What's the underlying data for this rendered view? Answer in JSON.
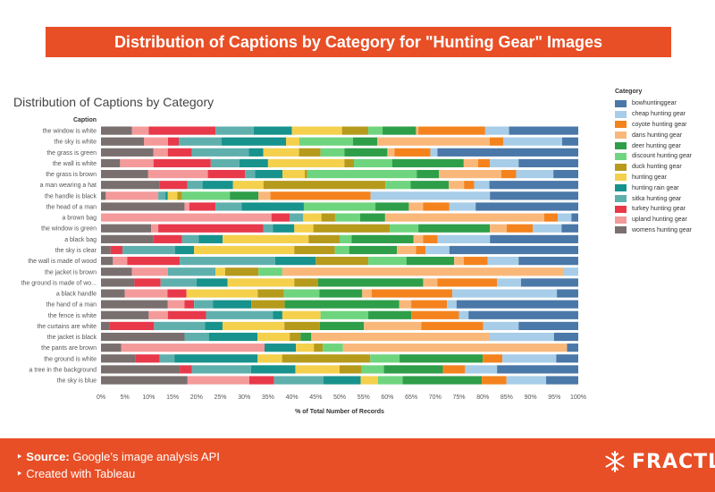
{
  "banner_title": "Distribution of Captions by Category for \"Hunting Gear\" Images",
  "chart_data": {
    "type": "bar",
    "orientation": "horizontal-stacked-100",
    "title": "Distribution of Captions by Category",
    "ylabel": "Caption",
    "xlabel": "% of Total Number of Records",
    "xlim": [
      0,
      100
    ],
    "xticks": [
      "0%",
      "5%",
      "10%",
      "15%",
      "20%",
      "25%",
      "30%",
      "35%",
      "40%",
      "45%",
      "50%",
      "55%",
      "60%",
      "65%",
      "70%",
      "75%",
      "80%",
      "85%",
      "90%",
      "95%",
      "100%"
    ],
    "legend_title": "Category",
    "legend_position": "right",
    "series": [
      {
        "name": "womens hunting gear",
        "color": "#7a6f6f"
      },
      {
        "name": "upland hunting gear",
        "color": "#f49a9a"
      },
      {
        "name": "turkey hunting gear",
        "color": "#e8394a"
      },
      {
        "name": "sitka hunting gear",
        "color": "#5fb0ad"
      },
      {
        "name": "hunting rain gear",
        "color": "#17928d"
      },
      {
        "name": "hunting gear",
        "color": "#f4d04c"
      },
      {
        "name": "duck hunting gear",
        "color": "#b69a1c"
      },
      {
        "name": "discount hunting gear",
        "color": "#6ed57e"
      },
      {
        "name": "deer hunting gear",
        "color": "#2e9e49"
      },
      {
        "name": "dans hunting gear",
        "color": "#f9b87a"
      },
      {
        "name": "coyote hunting gear",
        "color": "#f4831e"
      },
      {
        "name": "cheap hunting gear",
        "color": "#a7cde8"
      },
      {
        "name": "bowhuntinggear",
        "color": "#4a78a8"
      }
    ],
    "categories": [
      "the window is white",
      "the sky is white",
      "the grass is green",
      "the wall is white",
      "the grass is brown",
      "a man wearing a hat",
      "the handle is black",
      "the head of a man",
      "a brown bag",
      "the window is green",
      "a black bag",
      "the sky is clear",
      "the wall is made of wood",
      "the jacket is brown",
      "the ground is made of wo...",
      "a black handle",
      "the hand of a man",
      "the fence is white",
      "the curtains are white",
      "the jacket is black",
      "the pants are brown",
      "the ground is white",
      "a tree in the background",
      "the sky is blue"
    ],
    "values": [
      [
        6.5,
        3.5,
        14,
        8,
        8,
        10.5,
        5.5,
        3,
        7,
        0.5,
        14,
        5,
        14.5
      ],
      [
        8,
        4.5,
        2,
        8,
        12,
        2.5,
        0,
        10,
        4.5,
        21,
        2.5,
        11,
        3
      ],
      [
        11,
        3,
        5,
        12,
        3,
        7.5,
        4.5,
        5,
        9,
        1.5,
        7.5,
        1.5,
        29.5
      ],
      [
        4,
        7,
        12,
        6,
        6,
        16,
        2,
        8,
        15,
        3,
        2.5,
        6,
        12.5
      ],
      [
        9.5,
        12,
        7.5,
        2,
        5.5,
        4.5,
        0.5,
        22,
        4.5,
        12.5,
        3,
        7.5,
        5
      ],
      [
        11.5,
        0,
        5.5,
        3,
        6,
        6,
        24,
        5,
        7.5,
        3,
        2,
        3,
        17.5
      ],
      [
        1,
        11,
        0,
        1.5,
        0.5,
        2,
        1,
        10,
        6,
        2.5,
        21,
        25,
        18.5
      ],
      [
        17.5,
        1,
        5.5,
        5.5,
        13,
        0,
        0,
        15,
        7,
        3,
        5.5,
        5.5,
        21.5
      ],
      [
        0,
        37.5,
        4,
        3,
        0,
        4,
        3,
        5.5,
        5.5,
        35,
        3,
        3,
        1.5
      ],
      [
        10.5,
        1.5,
        22,
        2,
        4.5,
        4,
        16,
        6,
        15,
        3.5,
        5.5,
        6,
        3.5
      ],
      [
        11,
        0,
        6,
        3.5,
        5,
        18,
        6.5,
        2.5,
        13,
        2,
        3,
        11,
        18.5
      ],
      [
        2,
        0,
        2.5,
        11,
        4,
        21,
        8.5,
        3,
        10,
        4,
        2,
        5,
        27
      ],
      [
        2.5,
        3,
        11,
        20,
        8.5,
        0,
        11,
        8,
        10,
        2,
        5,
        6.5,
        12.5
      ],
      [
        6.5,
        7.5,
        0,
        10,
        0,
        2,
        7,
        5,
        0,
        59,
        0,
        3,
        0
      ],
      [
        7,
        0,
        5.5,
        7.5,
        6.5,
        14,
        5,
        0,
        22,
        3,
        12.5,
        5,
        12
      ],
      [
        5,
        9,
        4,
        0,
        0,
        15,
        5.5,
        7.5,
        9,
        2,
        17,
        22,
        4.5
      ],
      [
        14,
        3.5,
        2,
        4,
        8,
        0,
        7,
        0,
        24,
        2.5,
        7.5,
        2,
        25.5
      ],
      [
        10,
        4,
        8,
        14,
        2,
        8,
        0,
        10,
        9,
        0,
        10,
        2,
        23
      ],
      [
        2,
        0,
        10,
        11.5,
        4,
        14,
        8,
        0,
        10,
        13,
        14,
        8,
        13.5
      ],
      [
        15.5,
        0,
        0,
        4.5,
        9,
        6,
        2,
        0,
        2,
        33,
        0,
        12,
        4.5
      ],
      [
        4.5,
        32,
        0,
        0,
        7,
        4,
        2,
        4.5,
        0,
        50,
        0,
        0,
        2.5
      ],
      [
        7,
        0,
        5,
        3,
        17,
        5,
        18,
        6,
        17,
        0,
        4,
        11,
        4.5
      ],
      [
        16,
        0,
        2.5,
        12,
        9,
        9,
        4.5,
        4.5,
        12,
        0,
        4.5,
        6.5,
        16.5
      ],
      [
        17.5,
        12.5,
        5,
        10,
        7.5,
        3.5,
        0,
        5,
        16,
        0,
        5,
        8,
        6.5
      ]
    ]
  },
  "footer": {
    "source_label": "Source:",
    "source_text": "Google’s image analysis API",
    "made_text": "Created with Tableau",
    "brand": "FRACTL"
  },
  "icons": {
    "brand_icon": "snowflake-icon",
    "bullet": "triangle-bullet-icon"
  }
}
